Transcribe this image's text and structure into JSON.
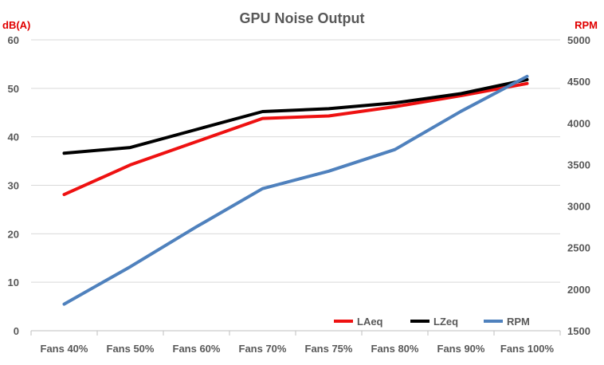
{
  "chart_data": {
    "type": "line",
    "title": "GPU Noise Output",
    "ylabel_left": "dB(A)",
    "ylabel_right": "RPM",
    "categories": [
      "Fans 40%",
      "Fans 50%",
      "Fans 60%",
      "Fans 70%",
      "Fans 75%",
      "Fans 80%",
      "Fans 90%",
      "Fans 100%"
    ],
    "ylim_left": [
      0,
      60
    ],
    "yticks_left": [
      "0",
      "10",
      "20",
      "30",
      "40",
      "50",
      "60"
    ],
    "ylim_right": [
      1500,
      5000
    ],
    "yticks_right": [
      "1500",
      "2000",
      "2500",
      "3000",
      "3500",
      "4000",
      "4500",
      "5000"
    ],
    "grid": "horizontal",
    "legend_position": "bottom-right",
    "series": [
      {
        "name": "LAeq",
        "axis": "left",
        "color": "#ee1111",
        "values": [
          28.1,
          34.2,
          39.0,
          43.8,
          44.3,
          46.2,
          48.5,
          51.0
        ]
      },
      {
        "name": "LZeq",
        "axis": "left",
        "color": "#000000",
        "values": [
          36.6,
          37.8,
          41.5,
          45.2,
          45.8,
          47.0,
          48.9,
          51.8
        ]
      },
      {
        "name": "RPM",
        "axis": "right",
        "color": "#4f81bd",
        "values": [
          1820,
          2270,
          2750,
          3210,
          3420,
          3680,
          4140,
          4560
        ]
      }
    ]
  }
}
